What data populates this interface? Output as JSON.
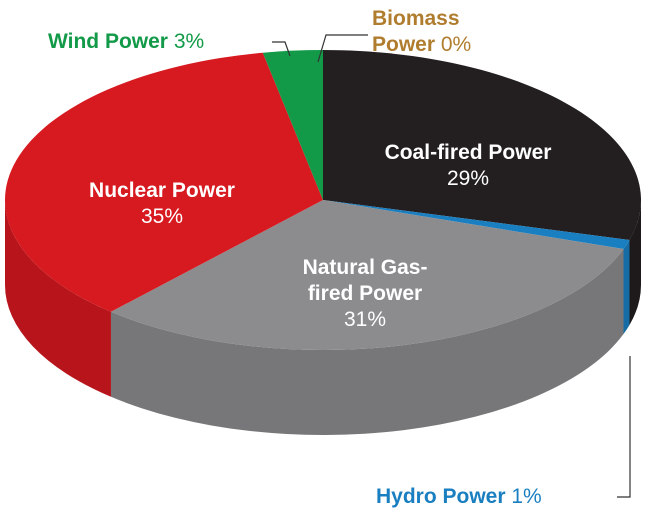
{
  "chart_data": {
    "type": "pie3d",
    "categories": [
      "Coal-fired Power",
      "Hydro Power",
      "Natural Gas-fired Power",
      "Nuclear Power",
      "Wind Power",
      "Biomass Power"
    ],
    "values": [
      29,
      1,
      31,
      35,
      3,
      0
    ],
    "value_labels": [
      "29%",
      "1%",
      "31%",
      "35%",
      "3%",
      "0%"
    ],
    "colors": [
      "#231f20",
      "#1a7fc1",
      "#8c8c8e",
      "#d71920",
      "#129a48",
      "#b07d2f"
    ]
  }
}
